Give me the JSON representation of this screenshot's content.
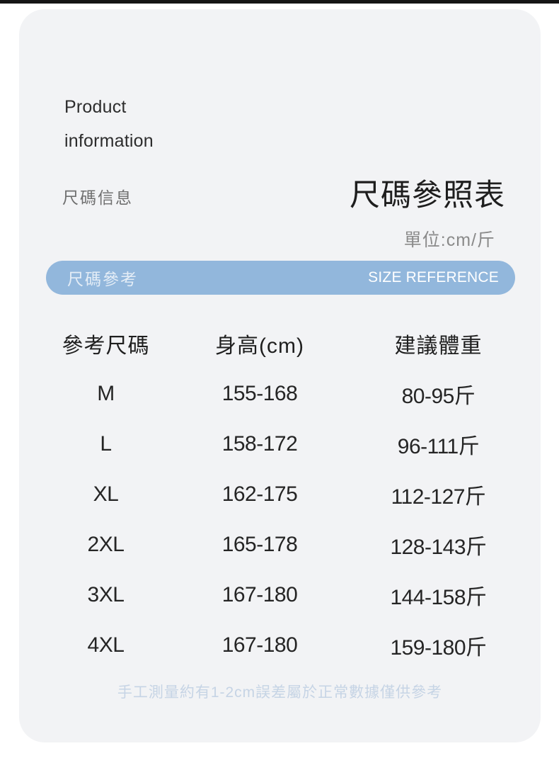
{
  "header": {
    "brand_line1": "Product",
    "brand_line2": "information",
    "section_label": "尺碼信息",
    "title": "尺碼參照表",
    "unit_note": "單位:cm/斤"
  },
  "banner": {
    "label_cn": "尺碼參考",
    "label_en": "SIZE REFERENCE"
  },
  "table": {
    "headers": [
      "參考尺碼",
      "身高(cm)",
      "建議體重"
    ],
    "rows": [
      {
        "size": "M",
        "height": "155-168",
        "weight": "80-95斤"
      },
      {
        "size": "L",
        "height": "158-172",
        "weight": "96-111斤"
      },
      {
        "size": "XL",
        "height": "162-175",
        "weight": "112-127斤"
      },
      {
        "size": "2XL",
        "height": "165-178",
        "weight": "128-143斤"
      },
      {
        "size": "3XL",
        "height": "167-180",
        "weight": "144-158斤"
      },
      {
        "size": "4XL",
        "height": "167-180",
        "weight": "159-180斤"
      }
    ]
  },
  "footer": {
    "note": "手工測量約有1-2cm誤差屬於正常數據僅供參考"
  },
  "colors": {
    "top_bar": "#151515",
    "card_bg": "#f2f3f5",
    "banner_blue": "#92b7dc",
    "title_text": "#1e1e1e",
    "muted_text": "#8a8a8a",
    "footer_note": "#c6d4e5"
  }
}
